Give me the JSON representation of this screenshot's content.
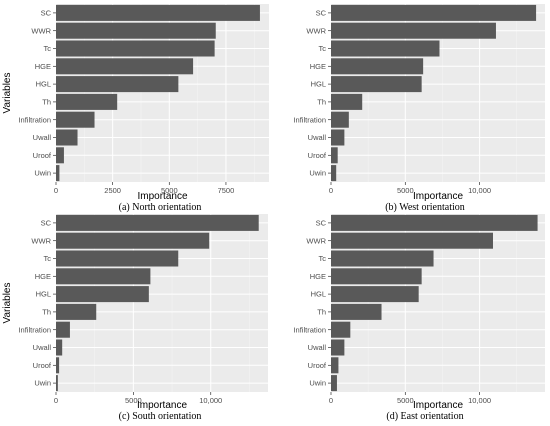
{
  "chart_data": [
    {
      "type": "bar",
      "orientation": "horizontal",
      "caption": "(a) North orientation",
      "xlabel": "Importance",
      "ylabel": "Variables",
      "categories": [
        "SC",
        "WWR",
        "Tc",
        "HGE",
        "HGL",
        "Th",
        "Infiltration",
        "Uwall",
        "Uroof",
        "Uwin"
      ],
      "values": [
        9000,
        7050,
        7000,
        6050,
        5400,
        2700,
        1700,
        950,
        350,
        150
      ],
      "xlim": [
        0,
        9400
      ],
      "xticks": [
        0,
        2500,
        5000,
        7500
      ],
      "xtick_labels": [
        "0",
        "2500",
        "5000",
        "7500"
      ],
      "grid": true
    },
    {
      "type": "bar",
      "orientation": "horizontal",
      "caption": "(b) West orientation",
      "xlabel": "Importance",
      "ylabel": "",
      "categories": [
        "SC",
        "WWR",
        "Tc",
        "HGE",
        "HGL",
        "Th",
        "Infiltration",
        "Uwall",
        "Uroof",
        "Uwin"
      ],
      "values": [
        13800,
        11100,
        7300,
        6200,
        6100,
        2100,
        1200,
        900,
        450,
        350
      ],
      "xlim": [
        0,
        14400
      ],
      "xticks": [
        0,
        5000,
        10000
      ],
      "xtick_labels": [
        "0",
        "5000",
        "10,000"
      ],
      "grid": true
    },
    {
      "type": "bar",
      "orientation": "horizontal",
      "caption": "(c) South orientation",
      "xlabel": "Importance",
      "ylabel": "Variables",
      "categories": [
        "SC",
        "WWR",
        "Tc",
        "HGE",
        "HGL",
        "Th",
        "Infiltration",
        "Uwall",
        "Uroof",
        "Uwin"
      ],
      "values": [
        13100,
        9900,
        7900,
        6100,
        6000,
        2600,
        900,
        400,
        200,
        120
      ],
      "xlim": [
        0,
        13700
      ],
      "xticks": [
        0,
        5000,
        10000
      ],
      "xtick_labels": [
        "0",
        "5000",
        "10,000"
      ],
      "grid": true
    },
    {
      "type": "bar",
      "orientation": "horizontal",
      "caption": "(d) East orientation",
      "xlabel": "Importance",
      "ylabel": "",
      "categories": [
        "SC",
        "WWR",
        "Tc",
        "HGE",
        "HGL",
        "Th",
        "Infiltration",
        "Uwall",
        "Uroof",
        "Uwin"
      ],
      "values": [
        13900,
        10900,
        6900,
        6100,
        5900,
        3400,
        1300,
        900,
        500,
        400
      ],
      "xlim": [
        0,
        14400
      ],
      "xticks": [
        0,
        5000,
        10000
      ],
      "xtick_labels": [
        "0",
        "5000",
        "10,000"
      ],
      "grid": true
    }
  ],
  "colors": {
    "panel_background": "#ebebeb",
    "grid_major": "#ffffff",
    "bar_fill": "#595959",
    "tick_text": "#4d4d4d"
  }
}
